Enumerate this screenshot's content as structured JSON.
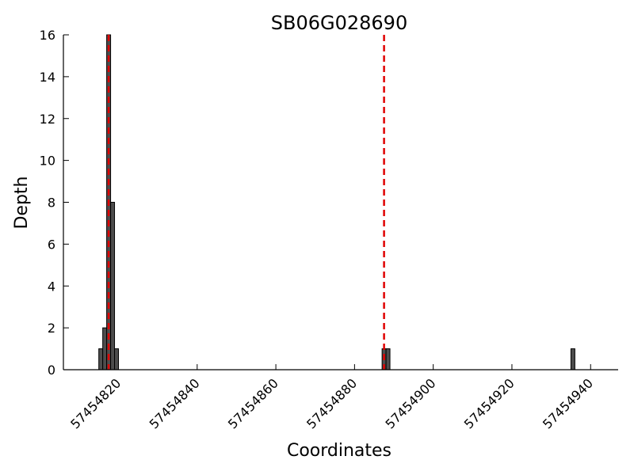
{
  "chart_data": {
    "type": "bar",
    "title": "SB06G028690",
    "xlabel": "Coordinates",
    "ylabel": "Depth",
    "xlim": [
      57454806,
      57454947
    ],
    "ylim": [
      0,
      16
    ],
    "x_ticks": [
      57454820,
      57454840,
      57454860,
      57454880,
      57454900,
      57454920,
      57454940
    ],
    "y_ticks": [
      0,
      2,
      4,
      6,
      8,
      10,
      12,
      14,
      16
    ],
    "bin_width": 1,
    "series": [
      {
        "x": [
          57454815,
          57454816,
          57454817,
          57454818,
          57454819,
          57454887,
          57454888,
          57454935
        ],
        "values": [
          1,
          2,
          16,
          8,
          1,
          1,
          1,
          1
        ]
      }
    ],
    "reference_lines": [
      57454817.5,
      57454887.5
    ],
    "grid": false,
    "colors": {
      "bar_fill": "#4d4d4d",
      "bar_edge": "#000000",
      "reference_line": "#e00000"
    }
  }
}
